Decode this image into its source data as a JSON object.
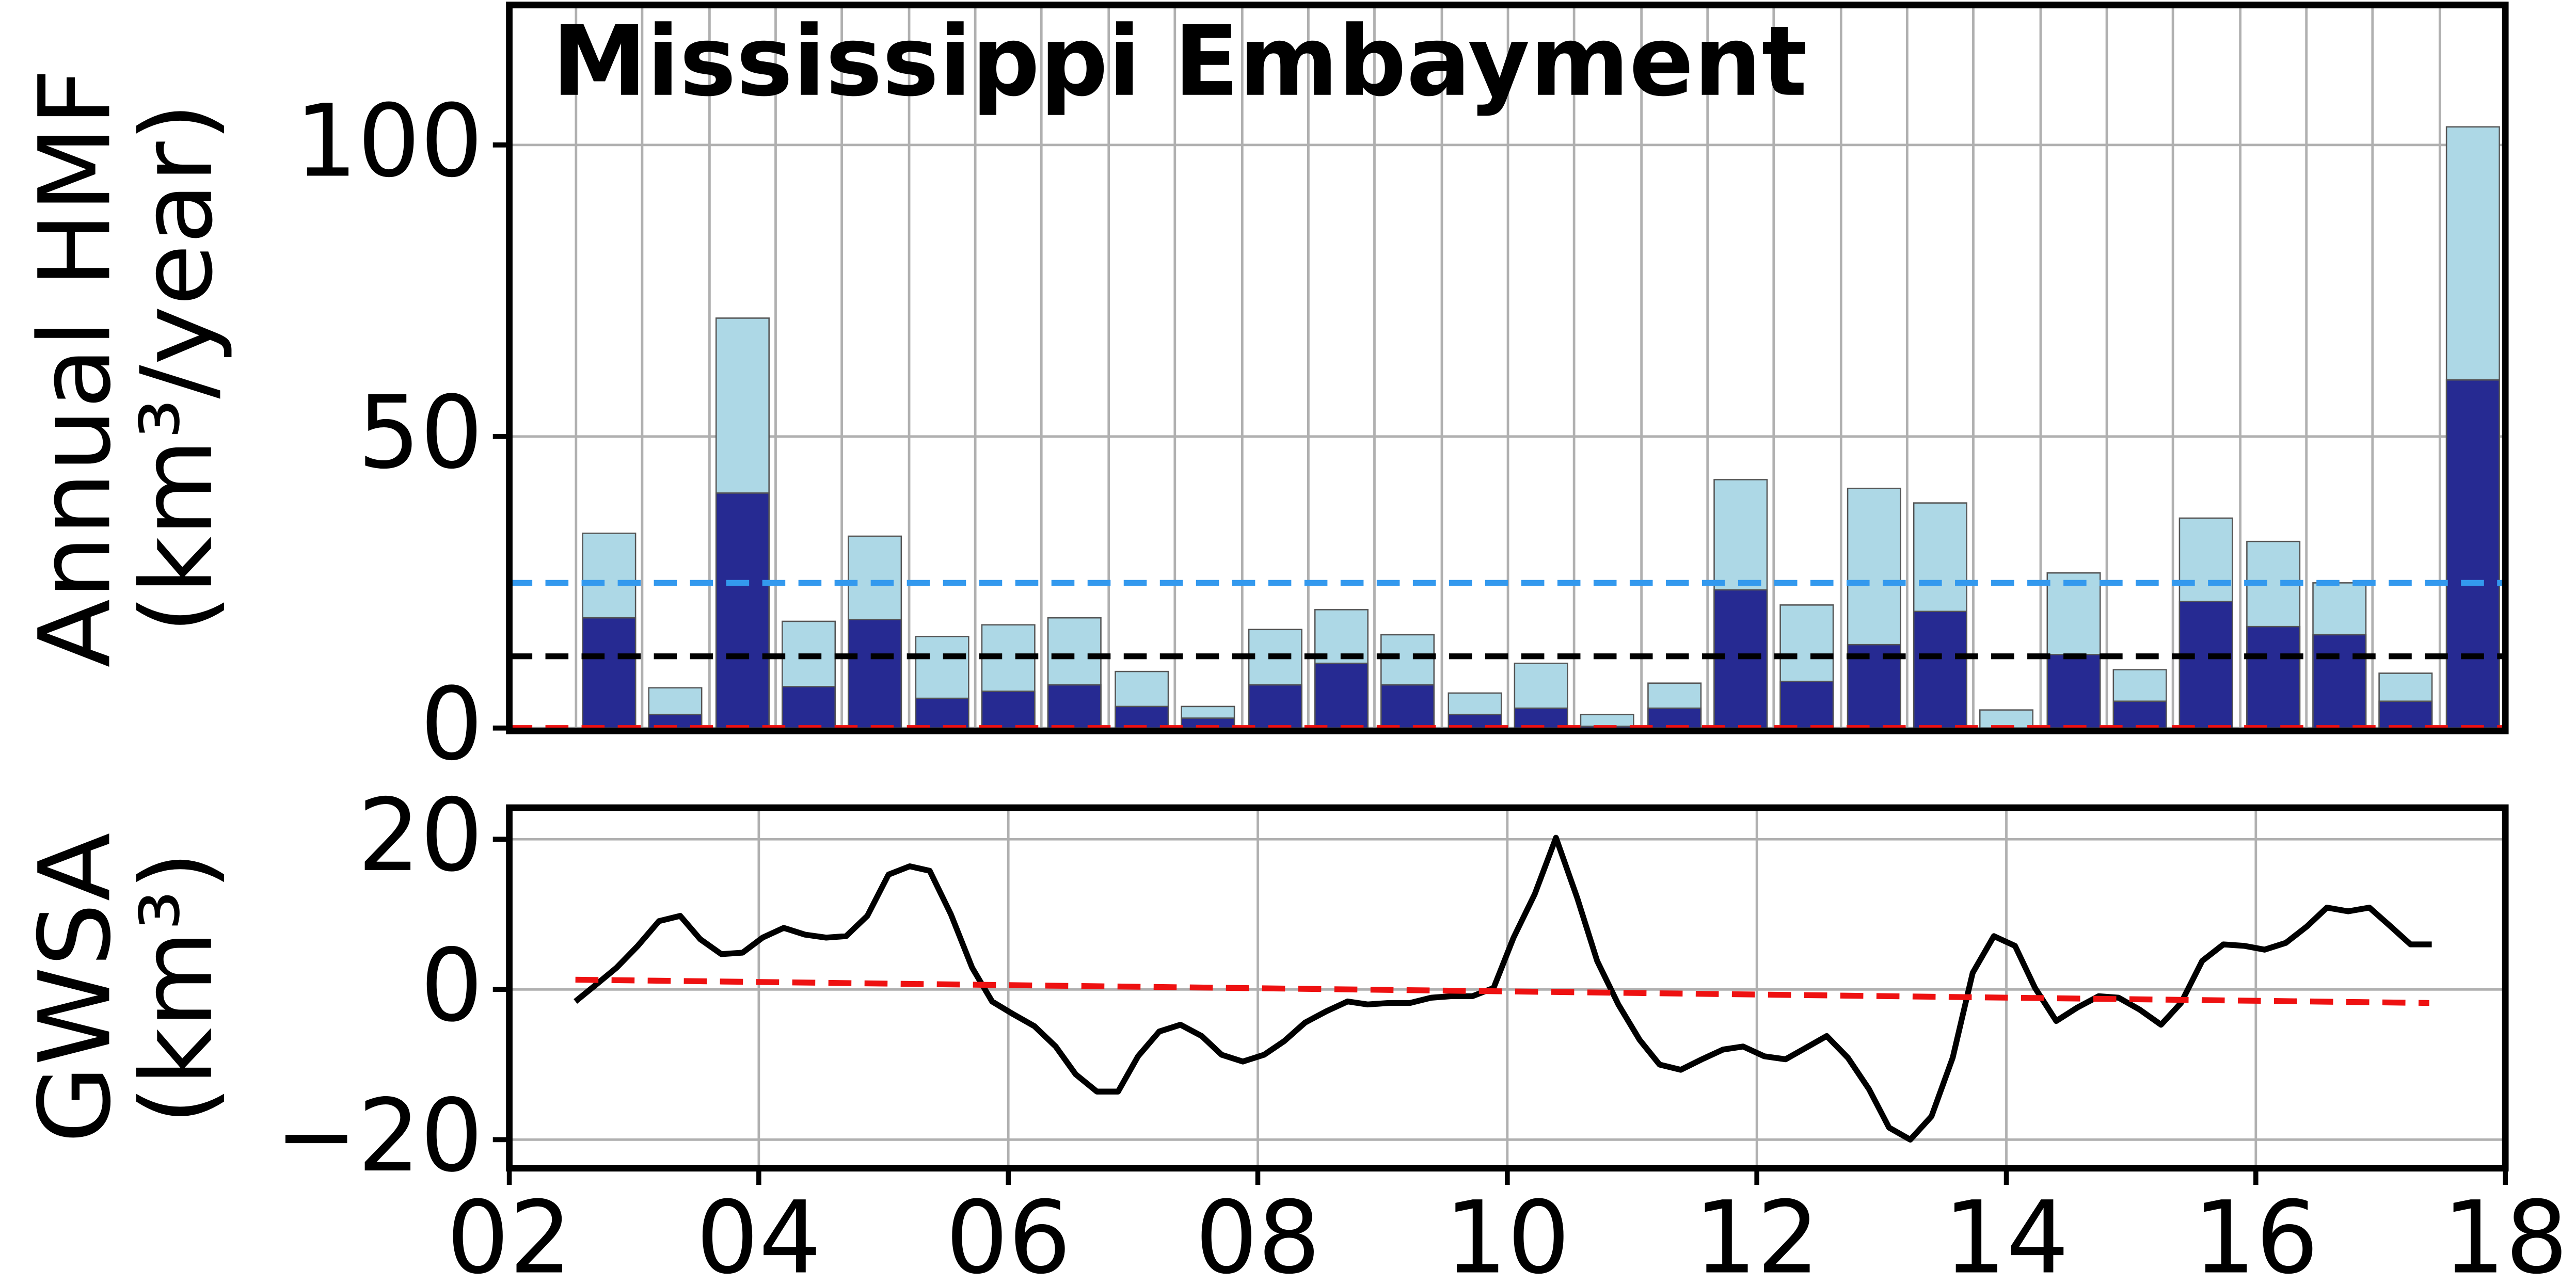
{
  "chart_data": [
    {
      "type": "bar",
      "title": "Mississippi Embayment",
      "ylabel": [
        "Annual HMF",
        "(km³/year)"
      ],
      "x": [
        2.8,
        3.33,
        3.87,
        4.4,
        4.93,
        5.47,
        6.0,
        6.53,
        7.07,
        7.6,
        8.14,
        8.67,
        9.2,
        9.74,
        10.27,
        10.8,
        11.34,
        11.87,
        12.4,
        12.94,
        13.47,
        14.0,
        14.54,
        15.07,
        15.6,
        16.14,
        16.67,
        17.2,
        17.74
      ],
      "series": [
        {
          "color": "#add8e6",
          "values": [
            33.4,
            6.9,
            70.3,
            18.3,
            32.9,
            15.7,
            17.7,
            18.9,
            9.7,
            3.7,
            16.9,
            20.3,
            16.0,
            6.0,
            11.1,
            2.3,
            7.7,
            42.6,
            21.1,
            41.1,
            38.6,
            3.1,
            26.6,
            10.0,
            36.0,
            32.0,
            24.9,
            9.4,
            103.1
          ]
        },
        {
          "color": "#262a92",
          "values": [
            18.9,
            2.3,
            40.3,
            7.1,
            18.6,
            5.1,
            6.3,
            7.4,
            3.7,
            1.7,
            7.4,
            11.1,
            7.4,
            2.3,
            3.4,
            0.3,
            3.4,
            23.7,
            8.0,
            14.3,
            20.0,
            0,
            12.6,
            4.6,
            21.7,
            17.4,
            16.0,
            4.6,
            59.7
          ]
        }
      ],
      "hlines": [
        {
          "value": 24.9,
          "color": "#3399ee"
        },
        {
          "value": 12.3,
          "color": "#000000"
        },
        {
          "value": 0,
          "color": "#ee1111"
        }
      ],
      "xlim": [
        2,
        18
      ],
      "ylim": [
        -0.5,
        124
      ],
      "yticks": [
        0,
        50,
        100
      ],
      "grid": true
    },
    {
      "type": "line",
      "ylabel": [
        "GWSA",
        "(km³)"
      ],
      "series": [
        {
          "color": "#000000",
          "dashed": false,
          "x": [
            2.53,
            2.7,
            2.86,
            3.03,
            3.2,
            3.37,
            3.53,
            3.7,
            3.87,
            4.03,
            4.2,
            4.37,
            4.54,
            4.7,
            4.87,
            5.04,
            5.21,
            5.37,
            5.54,
            5.71,
            5.87,
            6.04,
            6.21,
            6.38,
            6.54,
            6.71,
            6.88,
            7.04,
            7.21,
            7.38,
            7.55,
            7.71,
            7.88,
            8.05,
            8.21,
            8.38,
            8.55,
            8.72,
            8.88,
            9.05,
            9.22,
            9.39,
            9.55,
            9.72,
            9.89,
            10.05,
            10.22,
            10.39,
            10.56,
            10.72,
            10.89,
            11.06,
            11.22,
            11.39,
            11.56,
            11.73,
            11.89,
            12.06,
            12.23,
            12.39,
            12.56,
            12.73,
            12.9,
            13.06,
            13.23,
            13.4,
            13.57,
            13.73,
            13.9,
            14.07,
            14.23,
            14.4,
            14.57,
            14.74,
            14.9,
            15.07,
            15.24,
            15.4,
            15.57,
            15.74,
            15.91,
            16.07,
            16.24,
            16.41,
            16.57,
            16.74,
            16.91,
            17.08,
            17.24,
            17.41
          ],
          "values": [
            -1.6,
            0.7,
            2.9,
            5.8,
            9.1,
            9.8,
            6.7,
            4.7,
            4.9,
            6.9,
            8.2,
            7.3,
            6.9,
            7.1,
            9.8,
            15.3,
            16.4,
            15.8,
            10.0,
            2.9,
            -1.6,
            -3.3,
            -4.9,
            -7.6,
            -11.3,
            -13.6,
            -13.6,
            -8.9,
            -5.6,
            -4.7,
            -6.2,
            -8.7,
            -9.6,
            -8.7,
            -6.9,
            -4.4,
            -2.9,
            -1.6,
            -2.0,
            -1.8,
            -1.8,
            -1.1,
            -0.9,
            -0.9,
            0.2,
            6.9,
            12.7,
            20.2,
            12.2,
            3.8,
            -2.0,
            -6.7,
            -10.0,
            -10.7,
            -9.3,
            -8.0,
            -7.6,
            -8.9,
            -9.3,
            -7.8,
            -6.2,
            -9.1,
            -13.3,
            -18.4,
            -20.0,
            -16.9,
            -9.1,
            2.2,
            7.1,
            5.8,
            0.2,
            -4.2,
            -2.4,
            -0.9,
            -1.1,
            -2.7,
            -4.7,
            -1.8,
            3.8,
            6.0,
            5.8,
            5.3,
            6.2,
            8.4,
            10.9,
            10.4,
            10.9,
            8.4,
            6.0,
            6.0
          ]
        },
        {
          "color": "#ee1111",
          "dashed": true,
          "x": [
            2.53,
            17.39
          ],
          "values": [
            1.3,
            -1.8
          ]
        }
      ],
      "xlim": [
        2,
        18
      ],
      "ylim": [
        -23.8,
        24.2
      ],
      "xticks": [
        {
          "value": 2,
          "label": "02"
        },
        {
          "value": 4,
          "label": "04"
        },
        {
          "value": 6,
          "label": "06"
        },
        {
          "value": 8,
          "label": "08"
        },
        {
          "value": 10,
          "label": "10"
        },
        {
          "value": 12,
          "label": "12"
        },
        {
          "value": 14,
          "label": "14"
        },
        {
          "value": 16,
          "label": "16"
        },
        {
          "value": 18,
          "label": "18"
        }
      ],
      "yticks": [
        {
          "value": -20,
          "label": "−20"
        },
        0,
        20
      ],
      "grid": true
    }
  ]
}
